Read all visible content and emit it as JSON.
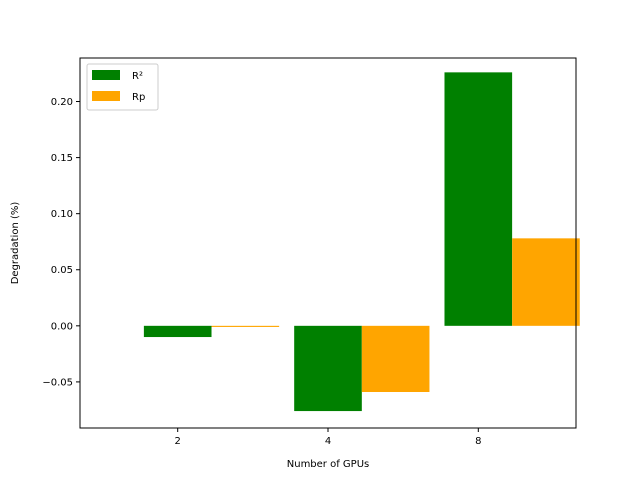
{
  "chart_data": {
    "type": "bar",
    "categories": [
      "2",
      "4",
      "8"
    ],
    "series": [
      {
        "name": "R²",
        "color": "#008000",
        "values": [
          -0.01,
          -0.076,
          0.226
        ]
      },
      {
        "name": "Rp",
        "color": "#ffa500",
        "values": [
          -0.001,
          -0.059,
          0.078
        ]
      }
    ],
    "xlabel": "Number of GPUs",
    "ylabel": "Degradation (%)",
    "ylim": [
      -0.0911,
      0.2388
    ],
    "yticks": [
      -0.05,
      0.0,
      0.05,
      0.1,
      0.15,
      0.2
    ],
    "ytick_labels": [
      "−0.05",
      "0.00",
      "0.05",
      "0.10",
      "0.15",
      "0.20"
    ],
    "grid": false,
    "legend_position": "top-left"
  }
}
